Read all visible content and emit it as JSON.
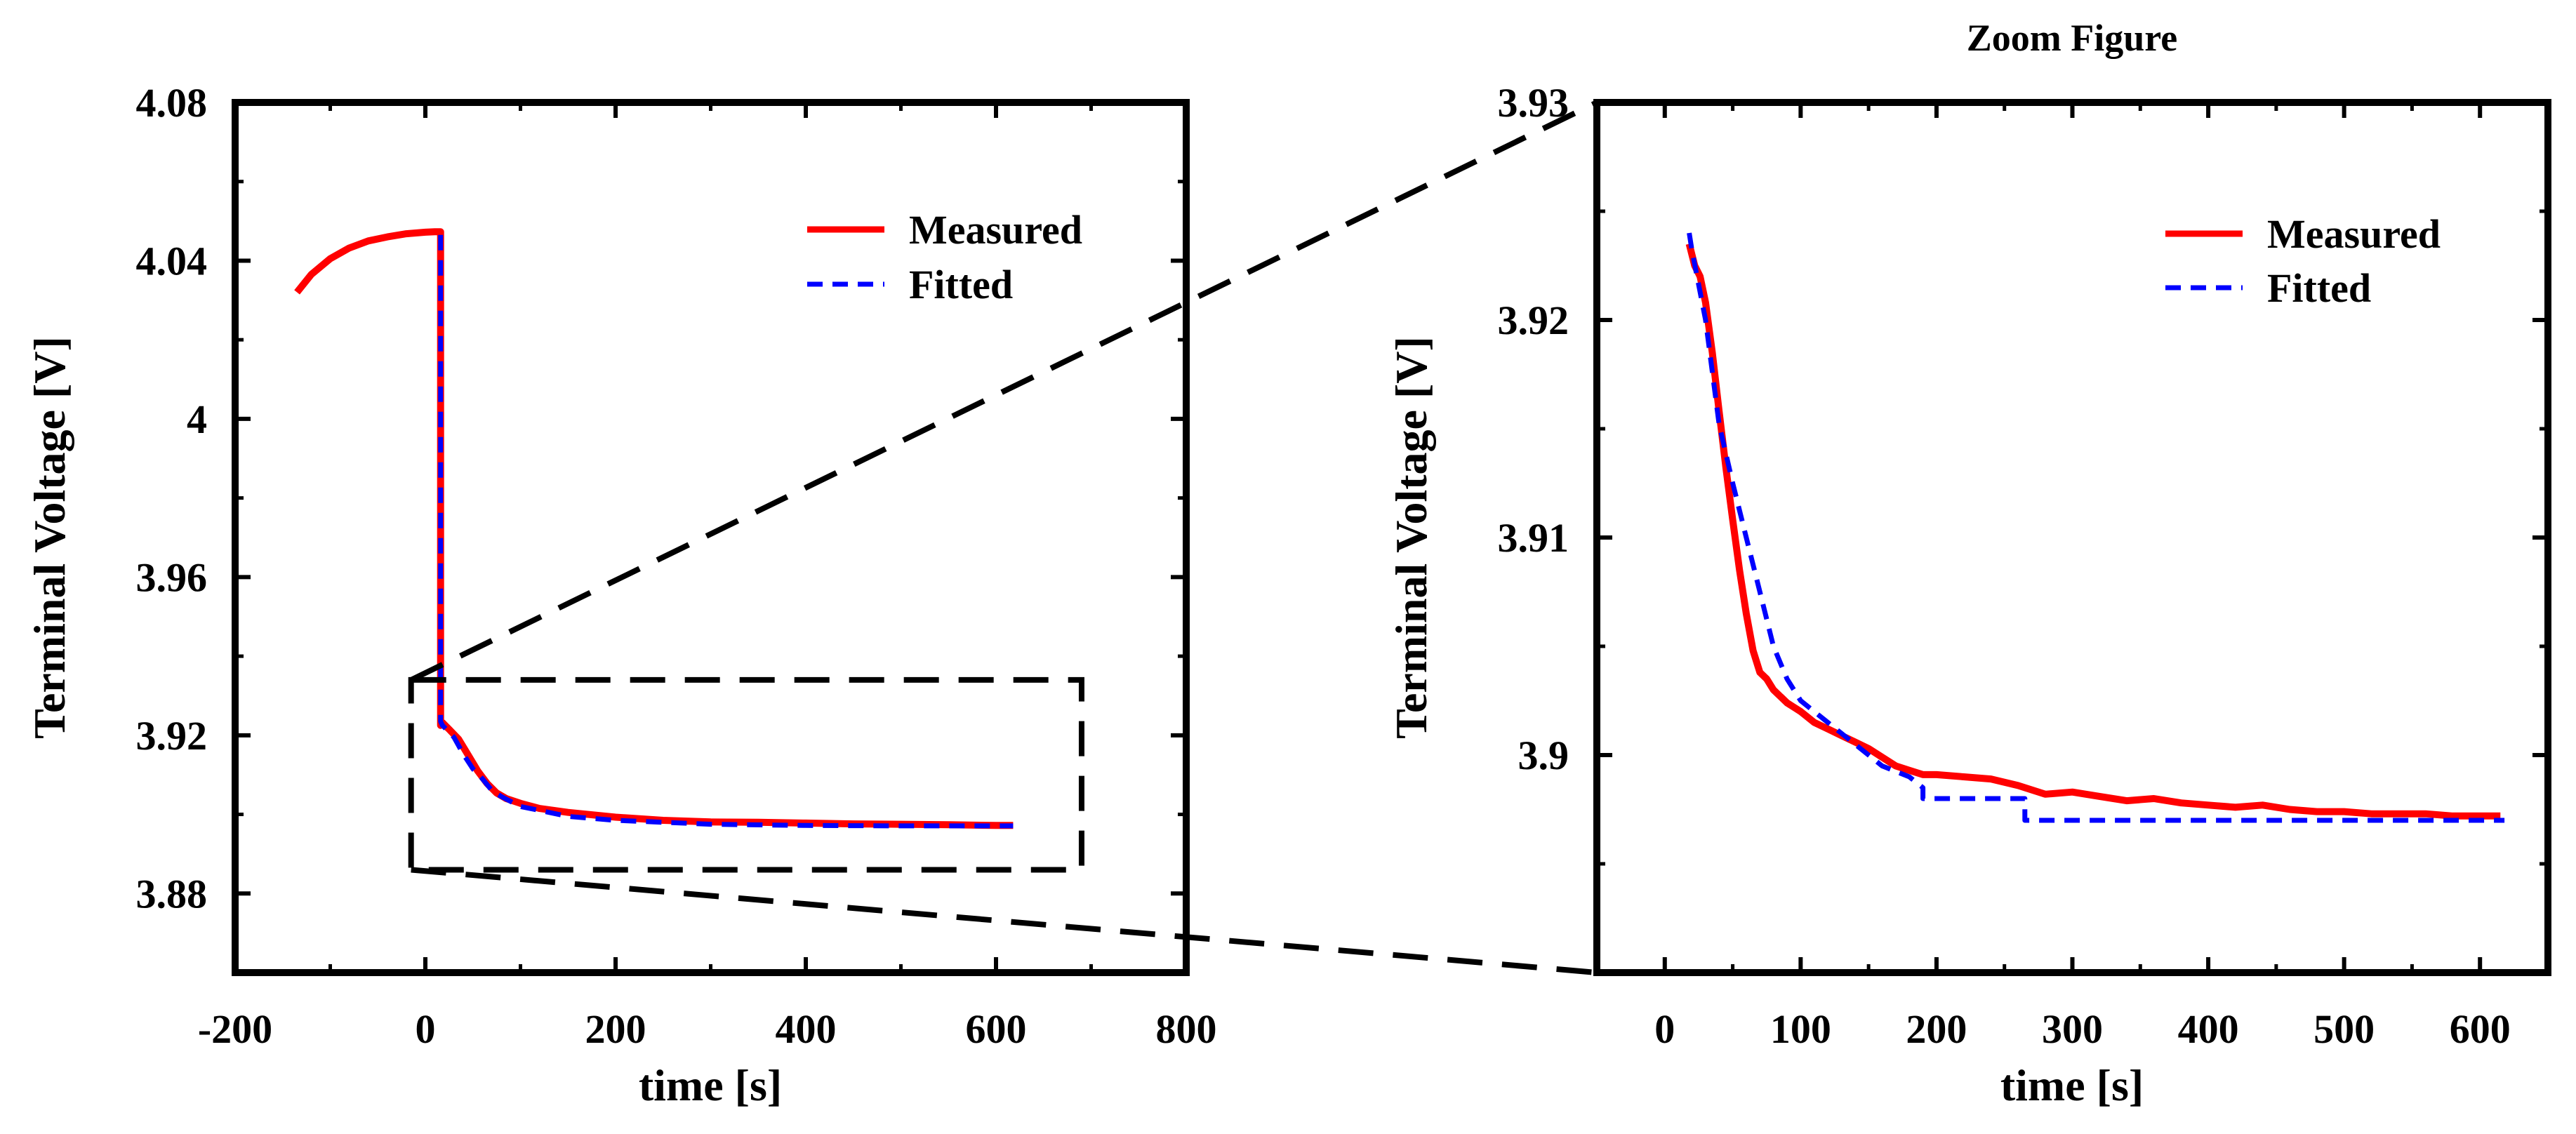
{
  "colors": {
    "measured": "#ff0000",
    "fitted": "#0000ff",
    "axes": "#000000",
    "zoom_box": "#000000"
  },
  "chart_data": [
    {
      "id": "left",
      "type": "line",
      "title": "",
      "xlabel": "time [s]",
      "ylabel": "Terminal Voltage [V]",
      "xlim": [
        -200,
        800
      ],
      "ylim": [
        3.86,
        4.08
      ],
      "xticks": [
        -200,
        0,
        200,
        400,
        600,
        800
      ],
      "xtick_labels": [
        "-200",
        "0",
        "200",
        "400",
        "600",
        "800"
      ],
      "yticks": [
        3.88,
        3.92,
        3.96,
        4.0,
        4.04,
        4.08
      ],
      "ytick_labels": [
        "3.88",
        "3.92",
        "3.96",
        "4",
        "4.04",
        "4.08"
      ],
      "legend": {
        "position": "top-right",
        "entries": [
          "Measured",
          "Fitted"
        ]
      },
      "zoom_box": {
        "x": [
          -15,
          690
        ],
        "y": [
          3.886,
          3.934
        ]
      },
      "series": [
        {
          "name": "Measured",
          "style": "solid",
          "x": [
            -135,
            -120,
            -100,
            -80,
            -60,
            -40,
            -20,
            0,
            10,
            15,
            16,
            16,
            18,
            25,
            35,
            45,
            55,
            65,
            75,
            85,
            100,
            120,
            150,
            200,
            250,
            300,
            350,
            400,
            450,
            500,
            550,
            600,
            618
          ],
          "y": [
            4.032,
            4.0365,
            4.0405,
            4.0432,
            4.045,
            4.046,
            4.0468,
            4.0472,
            4.0473,
            4.0473,
            4.0473,
            3.9225,
            3.9232,
            3.9215,
            3.919,
            3.915,
            3.911,
            3.9078,
            3.9054,
            3.904,
            3.9028,
            3.9015,
            3.9005,
            3.8993,
            3.8985,
            3.8981,
            3.898,
            3.8978,
            3.8976,
            3.8975,
            3.8974,
            3.8972,
            3.8972
          ]
        },
        {
          "name": "Fitted",
          "style": "dashed",
          "x": [
            16,
            16,
            18,
            30,
            40,
            50,
            60,
            70,
            80,
            100,
            120,
            150,
            200,
            250,
            300,
            400,
            500,
            600,
            618
          ],
          "y": [
            4.0465,
            3.9235,
            3.9225,
            3.9195,
            3.9152,
            3.9115,
            3.909,
            3.906,
            3.9045,
            3.902,
            3.901,
            3.8995,
            3.8985,
            3.898,
            3.8975,
            3.8972,
            3.8971,
            3.8971,
            3.8971
          ]
        }
      ]
    },
    {
      "id": "right",
      "type": "line",
      "title": "Zoom Figure",
      "xlabel": "time [s]",
      "ylabel": "Terminal Voltage [V]",
      "xlim": [
        -50,
        650
      ],
      "ylim": [
        3.89,
        3.93
      ],
      "xticks": [
        0,
        100,
        200,
        300,
        400,
        500,
        600
      ],
      "xtick_labels": [
        "0",
        "100",
        "200",
        "300",
        "400",
        "500",
        "600"
      ],
      "yticks": [
        3.9,
        3.91,
        3.92,
        3.93
      ],
      "ytick_labels": [
        "3.9",
        "3.91",
        "3.92",
        "3.93"
      ],
      "legend": {
        "position": "top-right",
        "entries": [
          "Measured",
          "Fitted"
        ]
      },
      "series": [
        {
          "name": "Measured",
          "style": "solid",
          "x": [
            18,
            22,
            26,
            30,
            35,
            40,
            45,
            50,
            55,
            60,
            65,
            70,
            75,
            80,
            85,
            90,
            95,
            100,
            110,
            120,
            130,
            140,
            150,
            160,
            170,
            180,
            190,
            200,
            220,
            240,
            260,
            280,
            300,
            320,
            340,
            360,
            380,
            400,
            420,
            440,
            460,
            480,
            500,
            520,
            540,
            560,
            580,
            600,
            615
          ],
          "y": [
            3.9235,
            3.9225,
            3.922,
            3.9208,
            3.9185,
            3.9158,
            3.9132,
            3.9108,
            3.9085,
            3.9065,
            3.9048,
            3.9038,
            3.9035,
            3.903,
            3.9027,
            3.9024,
            3.9022,
            3.902,
            3.9015,
            3.9012,
            3.9009,
            3.9006,
            3.9003,
            3.8999,
            3.8995,
            3.8993,
            3.8991,
            3.8991,
            3.899,
            3.8989,
            3.8986,
            3.8982,
            3.8983,
            3.8981,
            3.8979,
            3.898,
            3.8978,
            3.8977,
            3.8976,
            3.8977,
            3.8975,
            3.8974,
            3.8974,
            3.8973,
            3.8973,
            3.8973,
            3.8972,
            3.8972,
            3.8972
          ]
        },
        {
          "name": "Fitted",
          "style": "dashed",
          "x": [
            18,
            20,
            30,
            40,
            50,
            60,
            70,
            80,
            90,
            100,
            120,
            140,
            160,
            180,
            190,
            190,
            265,
            265,
            618
          ],
          "y": [
            3.924,
            3.9232,
            3.92,
            3.9152,
            3.9125,
            3.91,
            3.9075,
            3.905,
            3.9035,
            3.9025,
            3.9015,
            3.9005,
            3.8995,
            3.899,
            3.8985,
            3.898,
            3.898,
            3.897,
            3.897
          ]
        }
      ]
    }
  ]
}
